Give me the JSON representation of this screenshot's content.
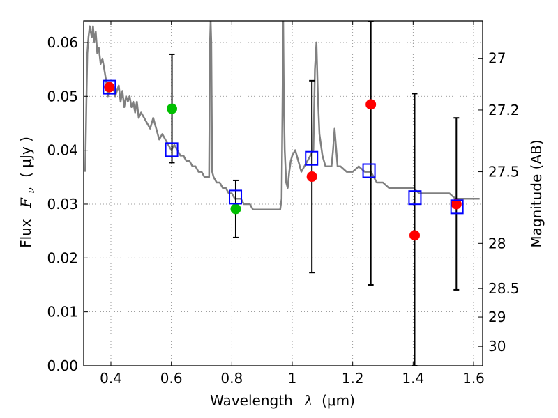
{
  "chart_data": {
    "type": "scatter",
    "title": "",
    "xlabel": {
      "text": "Wavelength",
      "symbol": "λ",
      "unit": "(μm)"
    },
    "ylabel": {
      "text": "Flux",
      "symbol": "F",
      "subscript": "ν",
      "unit": "( μJy )"
    },
    "y2label": "Magnitude (AB)",
    "xlim": [
      0.31,
      1.63
    ],
    "ylim": [
      0.0,
      0.064
    ],
    "grid": true,
    "grid_style": "dotted",
    "x_ticks": [
      0.4,
      0.6,
      0.8,
      1.0,
      1.2,
      1.4,
      1.6
    ],
    "x_tick_labels": [
      "0.4",
      "0.6",
      "0.8",
      "1",
      "1.2",
      "1.4",
      "1.6"
    ],
    "y_ticks": [
      0.0,
      0.01,
      0.02,
      0.03,
      0.04,
      0.05,
      0.06
    ],
    "y_tick_labels": [
      "0.00",
      "0.01",
      "0.02",
      "0.03",
      "0.04",
      "0.05",
      "0.06"
    ],
    "y2_ticks": [
      27,
      27.2,
      27.5,
      28,
      28.5,
      29,
      30
    ],
    "y2_tick_labels": [
      "27",
      "27.2",
      "27.5",
      "28",
      "28.5",
      "29",
      "30"
    ],
    "colors": {
      "spectrum": "#808080",
      "model_box": "#0000ff",
      "optical_point": "#00bf00",
      "nir_point": "#ff0000",
      "errorbar": "#000000",
      "grid": "#7f7f7f"
    },
    "series": [
      {
        "name": "",
        "kind": "line",
        "color": "#808080",
        "x": [
          0.315,
          0.319,
          0.322,
          0.326,
          0.33,
          0.333,
          0.337,
          0.341,
          0.345,
          0.35,
          0.355,
          0.36,
          0.366,
          0.372,
          0.378,
          0.384,
          0.39,
          0.396,
          0.402,
          0.408,
          0.414,
          0.42,
          0.426,
          0.432,
          0.438,
          0.444,
          0.45,
          0.456,
          0.462,
          0.468,
          0.474,
          0.48,
          0.486,
          0.492,
          0.5,
          0.51,
          0.52,
          0.53,
          0.54,
          0.55,
          0.56,
          0.57,
          0.58,
          0.59,
          0.6,
          0.61,
          0.62,
          0.63,
          0.64,
          0.65,
          0.66,
          0.67,
          0.68,
          0.69,
          0.7,
          0.71,
          0.72,
          0.725,
          0.728,
          0.73,
          0.732,
          0.735,
          0.74,
          0.75,
          0.76,
          0.77,
          0.78,
          0.79,
          0.8,
          0.81,
          0.82,
          0.83,
          0.84,
          0.85,
          0.86,
          0.87,
          0.88,
          0.89,
          0.9,
          0.91,
          0.92,
          0.93,
          0.94,
          0.95,
          0.96,
          0.965,
          0.968,
          0.97,
          0.972,
          0.975,
          0.98,
          0.985,
          0.99,
          0.995,
          1.0,
          1.01,
          1.02,
          1.03,
          1.04,
          1.05,
          1.06,
          1.07,
          1.075,
          1.08,
          1.085,
          1.09,
          1.1,
          1.11,
          1.12,
          1.13,
          1.135,
          1.14,
          1.15,
          1.16,
          1.18,
          1.2,
          1.22,
          1.24,
          1.26,
          1.28,
          1.3,
          1.32,
          1.34,
          1.36,
          1.38,
          1.4,
          1.42,
          1.44,
          1.46,
          1.48,
          1.5,
          1.52,
          1.54,
          1.56,
          1.58,
          1.6,
          1.62
        ],
        "y": [
          0.036,
          0.049,
          0.058,
          0.061,
          0.063,
          0.062,
          0.061,
          0.063,
          0.06,
          0.062,
          0.058,
          0.059,
          0.056,
          0.057,
          0.055,
          0.053,
          0.05,
          0.052,
          0.051,
          0.052,
          0.05,
          0.051,
          0.052,
          0.049,
          0.051,
          0.048,
          0.05,
          0.049,
          0.05,
          0.048,
          0.049,
          0.047,
          0.049,
          0.046,
          0.047,
          0.046,
          0.045,
          0.044,
          0.046,
          0.044,
          0.042,
          0.043,
          0.042,
          0.041,
          0.04,
          0.041,
          0.04,
          0.039,
          0.039,
          0.038,
          0.038,
          0.037,
          0.037,
          0.036,
          0.036,
          0.035,
          0.035,
          0.035,
          0.06,
          0.064,
          0.06,
          0.036,
          0.035,
          0.034,
          0.034,
          0.033,
          0.033,
          0.032,
          0.032,
          0.031,
          0.031,
          0.031,
          0.03,
          0.03,
          0.03,
          0.029,
          0.029,
          0.029,
          0.029,
          0.029,
          0.029,
          0.029,
          0.029,
          0.029,
          0.029,
          0.031,
          0.05,
          0.064,
          0.05,
          0.04,
          0.034,
          0.033,
          0.036,
          0.038,
          0.039,
          0.04,
          0.038,
          0.036,
          0.037,
          0.038,
          0.039,
          0.04,
          0.055,
          0.06,
          0.05,
          0.043,
          0.039,
          0.037,
          0.037,
          0.037,
          0.04,
          0.044,
          0.037,
          0.037,
          0.036,
          0.036,
          0.037,
          0.036,
          0.036,
          0.034,
          0.034,
          0.033,
          0.033,
          0.033,
          0.033,
          0.033,
          0.032,
          0.032,
          0.032,
          0.032,
          0.032,
          0.032,
          0.031,
          0.031,
          0.031,
          0.031,
          0.031
        ]
      },
      {
        "name": "",
        "kind": "open-square",
        "color": "#0000ff",
        "x": [
          0.395,
          0.601,
          0.812,
          1.064,
          1.254,
          1.406,
          1.545
        ],
        "y": [
          0.0517,
          0.0401,
          0.0313,
          0.0385,
          0.0362,
          0.0312,
          0.0295
        ]
      },
      {
        "name": "",
        "kind": "filled-circle",
        "color": "#00bf00",
        "x": [
          0.602,
          0.813
        ],
        "y": [
          0.0477,
          0.0291
        ]
      },
      {
        "name": "",
        "kind": "filled-circle",
        "color": "#ff0000",
        "x": [
          0.395,
          1.065,
          1.26,
          1.405,
          1.543
        ],
        "y": [
          0.0517,
          0.0351,
          0.0485,
          0.0242,
          0.03
        ]
      },
      {
        "name": "",
        "kind": "errorbar",
        "color": "#000000",
        "x": [
          0.602,
          0.813,
          1.065,
          1.26,
          1.405,
          1.543
        ],
        "y_low": [
          0.0377,
          0.0238,
          0.0173,
          0.015,
          0.0,
          0.0141
        ],
        "y_high": [
          0.0578,
          0.0344,
          0.0529,
          0.064,
          0.0505,
          0.046
        ]
      }
    ]
  }
}
